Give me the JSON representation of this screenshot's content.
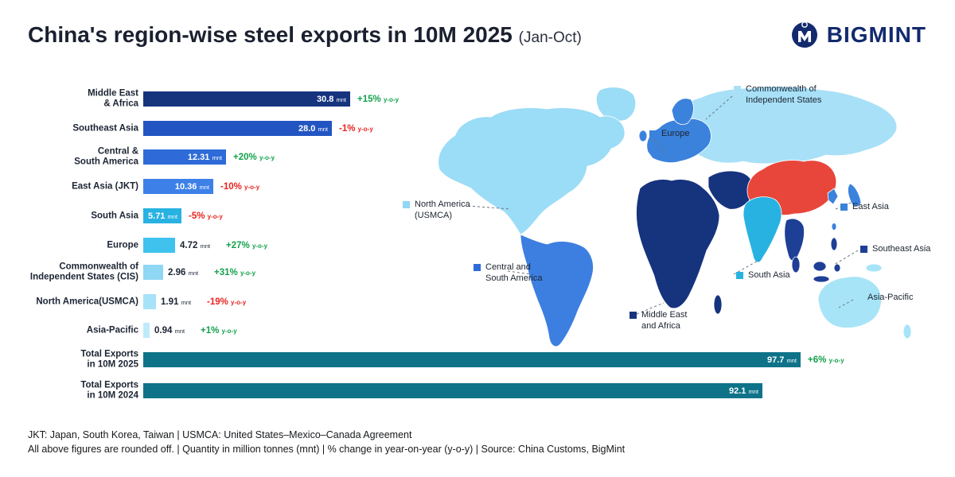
{
  "header": {
    "title": "China's region-wise steel exports in 10M 2025",
    "subtitle": "(Jan-Oct)",
    "brand": "BIGMINT"
  },
  "chart_data": {
    "type": "bar",
    "orientation": "horizontal",
    "title": "China's region-wise steel exports in 10M 2025 (Jan-Oct)",
    "unit_label": "mnt",
    "yoy_label": "y-o-y",
    "xlim": [
      0,
      100
    ],
    "colors": {
      "positive": "#12a14b",
      "negative": "#e8231f"
    },
    "bars": [
      {
        "label_lines": [
          "Middle East",
          "& Africa"
        ],
        "value": 30.8,
        "value_display": "30.8",
        "change": "+15%",
        "change_dir": "up",
        "color": "#16337e",
        "value_inside": true,
        "total": false
      },
      {
        "label_lines": [
          "Southeast Asia"
        ],
        "value": 28.0,
        "value_display": "28.0",
        "change": "-1%",
        "change_dir": "down",
        "color": "#2255c2",
        "value_inside": true,
        "total": false
      },
      {
        "label_lines": [
          "Central &",
          "South America"
        ],
        "value": 12.31,
        "value_display": "12.31",
        "change": "+20%",
        "change_dir": "up",
        "color": "#2e6bd8",
        "value_inside": true,
        "total": false
      },
      {
        "label_lines": [
          "East Asia (JKT)"
        ],
        "value": 10.36,
        "value_display": "10.36",
        "change": "-10%",
        "change_dir": "down",
        "color": "#3d80e8",
        "value_inside": true,
        "total": false
      },
      {
        "label_lines": [
          "South Asia"
        ],
        "value": 5.71,
        "value_display": "5.71",
        "change": "-5%",
        "change_dir": "down",
        "color": "#28b2e2",
        "value_inside": true,
        "total": false
      },
      {
        "label_lines": [
          "Europe"
        ],
        "value": 4.72,
        "value_display": "4.72",
        "change": "+27%",
        "change_dir": "up",
        "color": "#3fc3ee",
        "value_inside": false,
        "total": false
      },
      {
        "label_lines": [
          "Commonwealth of",
          "Independent States (CIS)"
        ],
        "value": 2.96,
        "value_display": "2.96",
        "change": "+31%",
        "change_dir": "up",
        "color": "#8fd7f5",
        "value_inside": false,
        "total": false
      },
      {
        "label_lines": [
          "North America(USMCA)"
        ],
        "value": 1.91,
        "value_display": "1.91",
        "change": "-19%",
        "change_dir": "down",
        "color": "#a8e2f8",
        "value_inside": false,
        "total": false
      },
      {
        "label_lines": [
          "Asia-Pacific"
        ],
        "value": 0.94,
        "value_display": "0.94",
        "change": "+1%",
        "change_dir": "up",
        "color": "#bfeafb",
        "value_inside": false,
        "total": false
      },
      {
        "label_lines": [
          "Total Exports",
          "in 10M 2025"
        ],
        "value": 97.7,
        "value_display": "97.7",
        "change": "+6%",
        "change_dir": "up",
        "color": "#0e7389",
        "value_inside": true,
        "total": true
      },
      {
        "label_lines": [
          "Total Exports",
          "in 10M 2024"
        ],
        "value": 92.1,
        "value_display": "92.1",
        "change": "",
        "change_dir": "",
        "color": "#0e7389",
        "value_inside": true,
        "total": true
      }
    ]
  },
  "map": {
    "regions": [
      {
        "id": "north-america",
        "color": "#9bdcf6"
      },
      {
        "id": "greenland",
        "color": "#9bdcf6"
      },
      {
        "id": "central-south-america",
        "color": "#3d7fe0"
      },
      {
        "id": "cis",
        "color": "#a8e0f7"
      },
      {
        "id": "europe",
        "color": "#3b82dc"
      },
      {
        "id": "africa-middle-east",
        "color": "#16337e"
      },
      {
        "id": "south-asia",
        "color": "#28b2e2"
      },
      {
        "id": "china",
        "color": "#e8463a"
      },
      {
        "id": "southeast-asia",
        "color": "#1e3f96"
      },
      {
        "id": "east-asia",
        "color": "#3b82dc"
      },
      {
        "id": "asia-pacific",
        "color": "#a8e4f8"
      }
    ],
    "labels": [
      {
        "id": "cis",
        "text_lines": [
          "Commonwealth of",
          "Independent States"
        ],
        "color": "#a8e0f7"
      },
      {
        "id": "europe",
        "text_lines": [
          "Europe"
        ],
        "color": "#3b82dc"
      },
      {
        "id": "north-america",
        "text_lines": [
          "North America",
          "(USMCA)"
        ],
        "color": "#8fd7f5"
      },
      {
        "id": "east-asia",
        "text_lines": [
          "East Asia"
        ],
        "color": "#3b82dc"
      },
      {
        "id": "southeast-asia",
        "text_lines": [
          "Southeast Asia"
        ],
        "color": "#1e3f96"
      },
      {
        "id": "central-south-america",
        "text_lines": [
          "Central and",
          "South America"
        ],
        "color": "#2e6bd8"
      },
      {
        "id": "south-asia",
        "text_lines": [
          "South Asia"
        ],
        "color": "#28b2e2"
      },
      {
        "id": "middle-east-africa",
        "text_lines": [
          "Middle East",
          "and Africa"
        ],
        "color": "#16337e"
      },
      {
        "id": "asia-pacific",
        "text_lines": [
          "Asia-Pacific"
        ],
        "color": "#a8e4f8"
      }
    ]
  },
  "footer": {
    "line1": "JKT: Japan, South Korea, Taiwan | USMCA: United States–Mexico–Canada Agreement",
    "line2": "All above figures are rounded off. | Quantity in million tonnes (mnt) | % change in year-on-year (y-o-y) | Source: China Customs, BigMint"
  }
}
